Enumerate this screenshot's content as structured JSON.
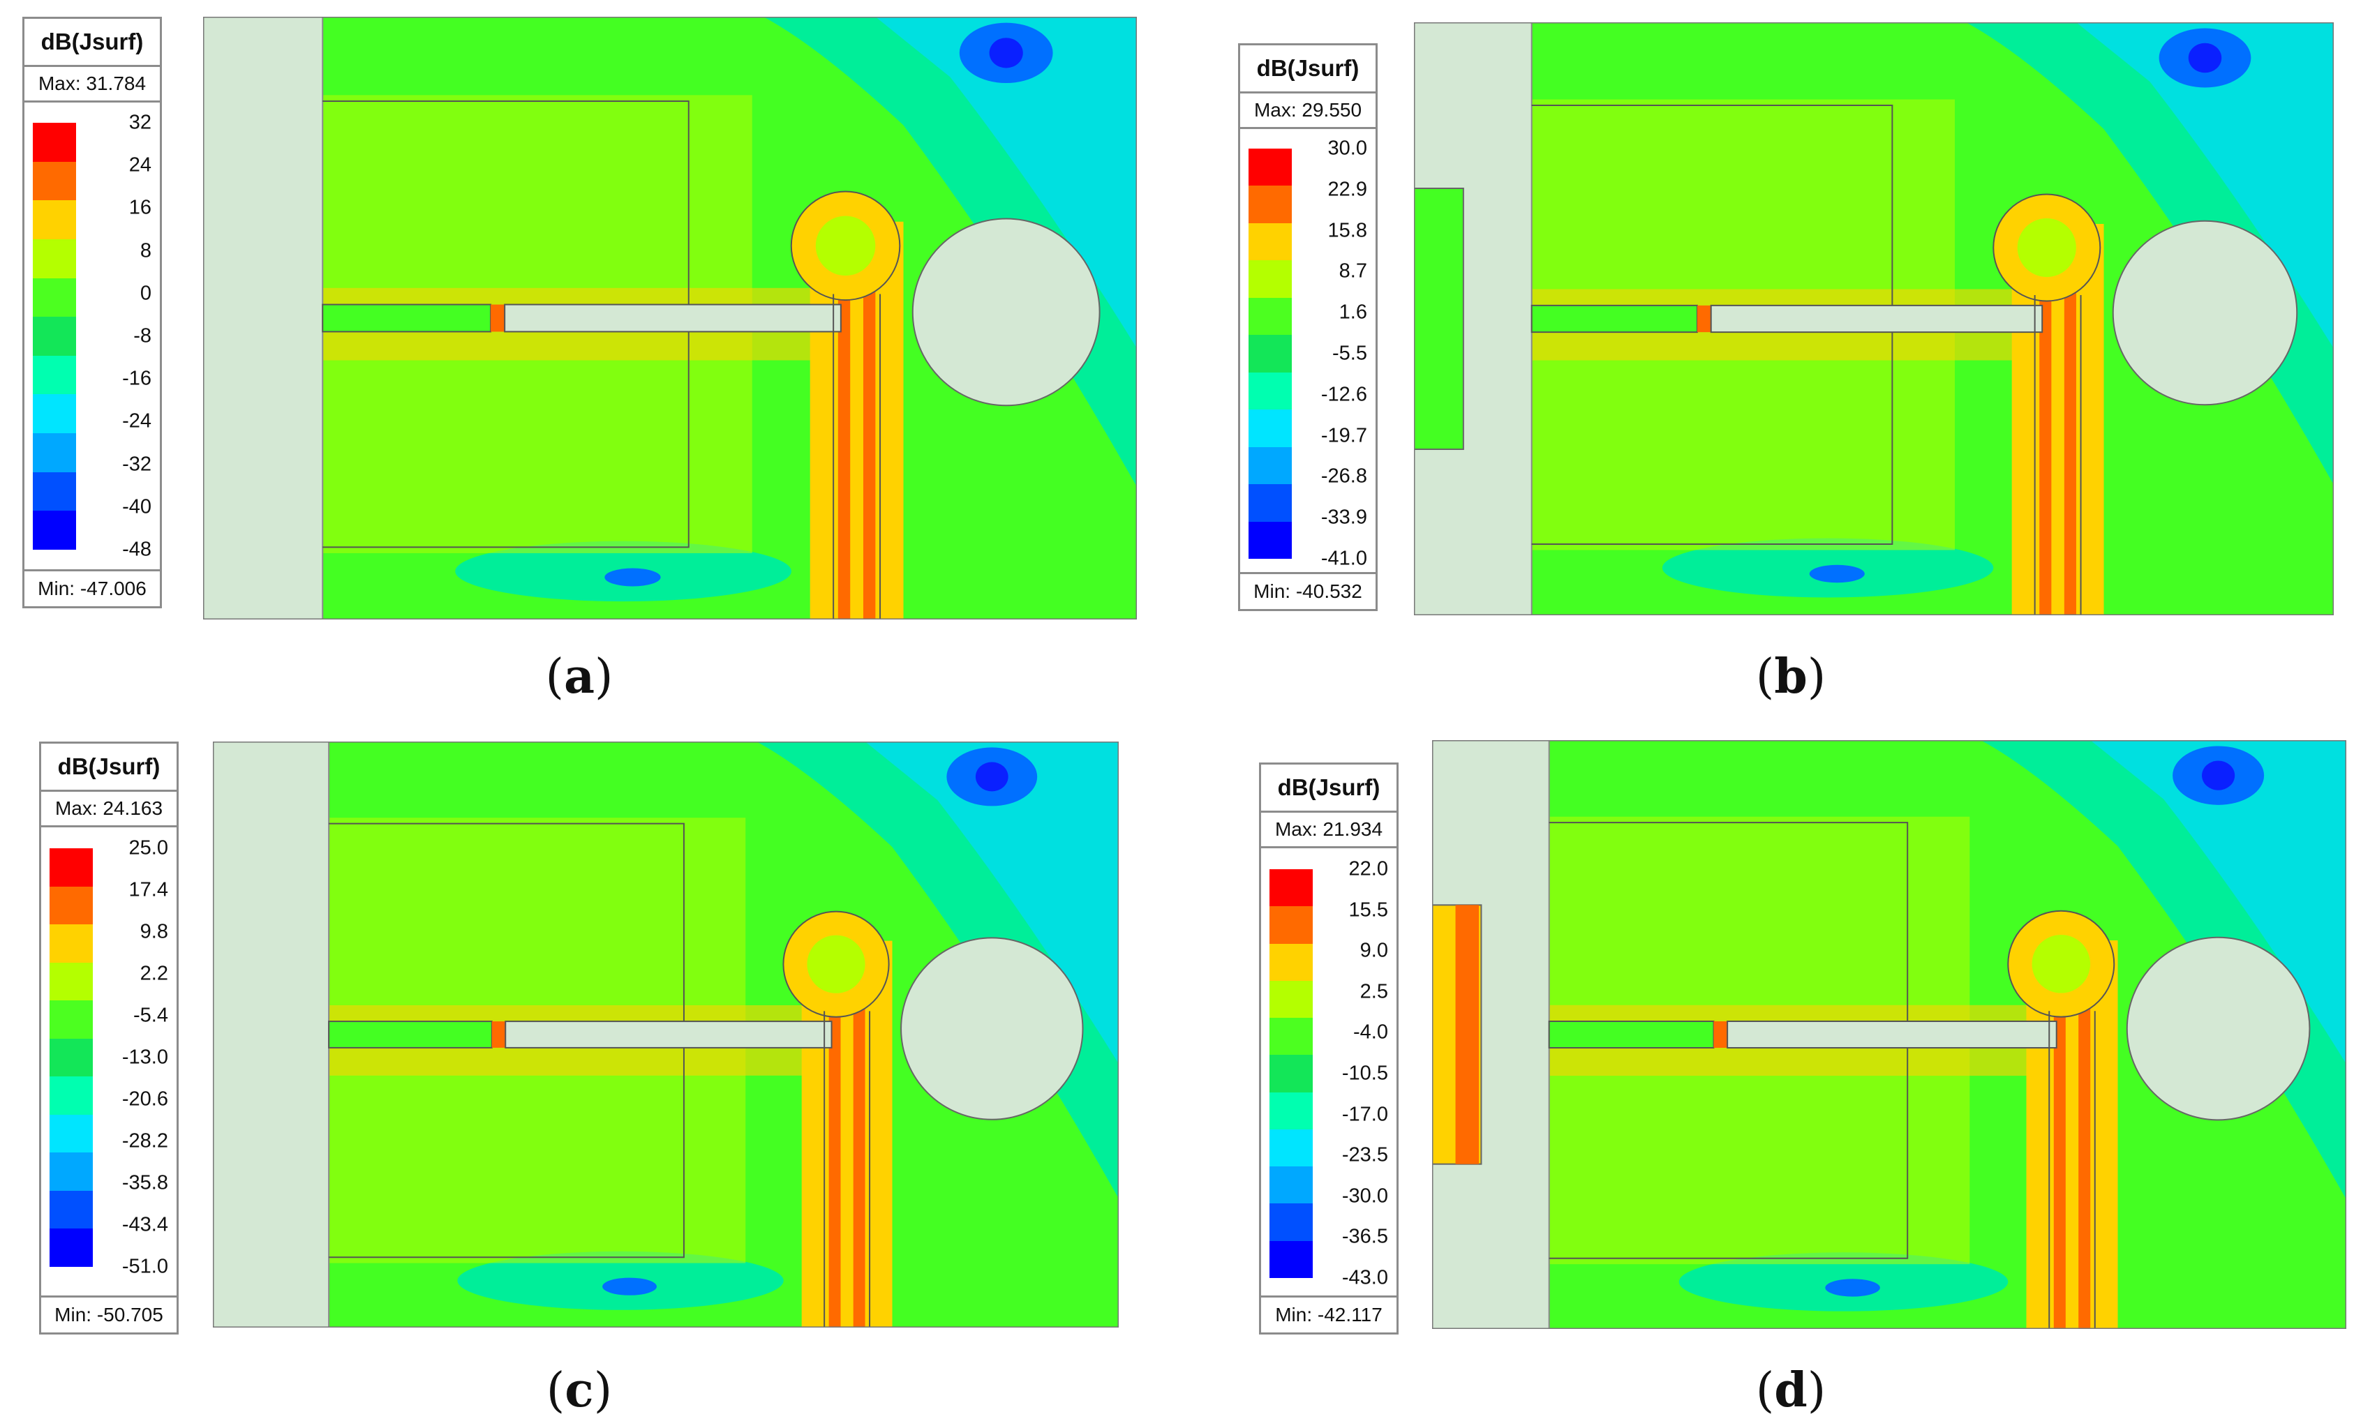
{
  "legend_colors": [
    "#ff0000",
    "#ff6a00",
    "#ffd200",
    "#b4ff00",
    "#4cff20",
    "#13e658",
    "#00ffb0",
    "#00e5ff",
    "#00a8ff",
    "#0050ff",
    "#0000ff"
  ],
  "field_colors": {
    "hot": "#ff6a00",
    "warm": "#ffd200",
    "mid": "#b4ff00",
    "green": "#44ff22",
    "teal": "#00ee99",
    "cyan": "#00e0e0",
    "blue": "#0070ff",
    "deep": "#0a20ff",
    "metal": "#d4e8d4"
  },
  "panels": [
    {
      "caption_letter": "a",
      "legend_title": "dB(Jsurf)",
      "max_label": "Max: 31.784",
      "min_label": "Min: -47.006",
      "ticks": [
        "32",
        "24",
        "16",
        "8",
        "0",
        "-8",
        "-16",
        "-24",
        "-32",
        "-40",
        "-48"
      ],
      "has_side_strip": false
    },
    {
      "caption_letter": "b",
      "legend_title": "dB(Jsurf)",
      "max_label": "Max: 29.550",
      "min_label": "Min: -40.532",
      "ticks": [
        "30.0",
        "22.9",
        "15.8",
        "8.7",
        "1.6",
        "-5.5",
        "-12.6",
        "-19.7",
        "-26.8",
        "-33.9",
        "-41.0"
      ],
      "has_side_strip": true
    },
    {
      "caption_letter": "c",
      "legend_title": "dB(Jsurf)",
      "max_label": "Max: 24.163",
      "min_label": "Min: -50.705",
      "ticks": [
        "25.0",
        "17.4",
        "9.8",
        "2.2",
        "-5.4",
        "-13.0",
        "-20.6",
        "-28.2",
        "-35.8",
        "-43.4",
        "-51.0"
      ],
      "has_side_strip": false
    },
    {
      "caption_letter": "d",
      "legend_title": "dB(Jsurf)",
      "max_label": "Max: 21.934",
      "min_label": "Min: -42.117",
      "ticks": [
        "22.0",
        "15.5",
        "9.0",
        "2.5",
        "-4.0",
        "-10.5",
        "-17.0",
        "-23.5",
        "-30.0",
        "-36.5",
        "-43.0"
      ],
      "has_side_strip": true
    }
  ]
}
